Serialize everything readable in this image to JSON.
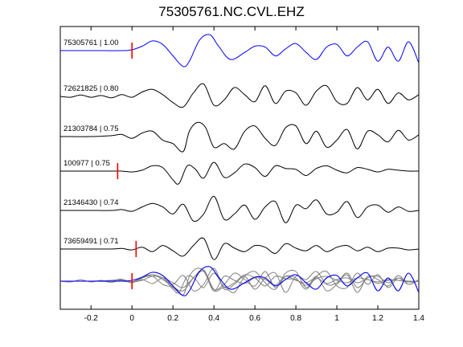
{
  "chart_data": {
    "type": "line",
    "title": "75305761.NC.CVL.EHZ",
    "xlabel": "",
    "ylabel": "",
    "xlim": [
      -0.35,
      1.4
    ],
    "xticks": [
      -0.2,
      0,
      0.2,
      0.4,
      0.6,
      0.8,
      1,
      1.2,
      1.4
    ],
    "xtick_labels": [
      "-0.2",
      "0",
      "0.2",
      "0.4",
      "0.6",
      "0.8",
      "1",
      "1.2",
      "1.4"
    ],
    "grid": false,
    "colors": {
      "primary": "#0000ff",
      "secondary": "#000000",
      "stack": "#808080",
      "pick": "#ff0000"
    },
    "traces": [
      {
        "label": "75305761 | 1.00",
        "color": "#0000ff",
        "pick": 0.0,
        "x": [
          -0.35,
          -0.2,
          -0.05,
          0,
          0.05,
          0.1,
          0.15,
          0.2,
          0.25,
          0.28,
          0.33,
          0.38,
          0.42,
          0.48,
          0.55,
          0.6,
          0.65,
          0.7,
          0.75,
          0.8,
          0.85,
          0.9,
          0.95,
          1.0,
          1.05,
          1.1,
          1.15,
          1.2,
          1.25,
          1.3,
          1.35,
          1.4
        ],
        "y": [
          0,
          0,
          0,
          0.05,
          0.25,
          0.55,
          0.35,
          -0.3,
          -0.9,
          -0.6,
          0.6,
          0.9,
          0.3,
          -0.5,
          -0.1,
          0.25,
          0.2,
          -0.3,
          0.1,
          0.4,
          -0.1,
          -0.5,
          0.2,
          0.35,
          -0.3,
          0.2,
          0.5,
          -0.6,
          0.2,
          -0.6,
          0.5,
          -0.7
        ]
      },
      {
        "label": "72621825 | 0.80",
        "color": "#000000",
        "pick": null,
        "x": [
          -0.35,
          -0.3,
          -0.25,
          -0.2,
          -0.15,
          -0.1,
          -0.05,
          0,
          0.05,
          0.1,
          0.15,
          0.2,
          0.25,
          0.3,
          0.35,
          0.4,
          0.45,
          0.5,
          0.55,
          0.6,
          0.65,
          0.7,
          0.75,
          0.8,
          0.85,
          0.9,
          0.95,
          1.0,
          1.05,
          1.1,
          1.15,
          1.2,
          1.25,
          1.3,
          1.35,
          1.4
        ],
        "y": [
          0,
          -0.05,
          0.08,
          -0.05,
          0.05,
          -0.08,
          0.1,
          -0.05,
          0.25,
          0.4,
          0.1,
          -0.35,
          -0.6,
          0.2,
          0.7,
          -0.5,
          -0.2,
          0.5,
          0.1,
          -0.3,
          0.6,
          -0.4,
          0.3,
          0.2,
          -0.5,
          0.3,
          0.6,
          -0.3,
          -0.4,
          0.5,
          -0.2,
          0.4,
          -0.4,
          0.2,
          -0.2,
          0.1
        ]
      },
      {
        "label": "21303784 | 0.75",
        "color": "#000000",
        "pick": null,
        "x": [
          -0.35,
          -0.2,
          -0.1,
          -0.05,
          0,
          0.05,
          0.1,
          0.15,
          0.2,
          0.25,
          0.28,
          0.32,
          0.36,
          0.4,
          0.45,
          0.5,
          0.55,
          0.6,
          0.65,
          0.7,
          0.75,
          0.8,
          0.85,
          0.9,
          0.95,
          1.0,
          1.05,
          1.1,
          1.15,
          1.2,
          1.25,
          1.3,
          1.35,
          1.4
        ],
        "y": [
          0,
          0,
          0.05,
          0.12,
          -0.1,
          0.2,
          0.3,
          -0.2,
          -0.4,
          -0.85,
          0.3,
          0.8,
          0.5,
          -0.6,
          -0.4,
          -0.7,
          0.3,
          0.6,
          -0.1,
          -0.5,
          0.5,
          0.6,
          -0.4,
          0.3,
          -0.6,
          -0.2,
          0.4,
          -0.7,
          0.3,
          0.1,
          -0.3,
          0.35,
          -0.2,
          0.1
        ]
      },
      {
        "label": "100977 | 0.75",
        "color": "#000000",
        "pick": -0.07,
        "x": [
          -0.35,
          -0.2,
          -0.1,
          -0.05,
          0,
          0.05,
          0.1,
          0.15,
          0.2,
          0.23,
          0.27,
          0.31,
          0.35,
          0.4,
          0.45,
          0.5,
          0.55,
          0.6,
          0.65,
          0.7,
          0.75,
          0.8,
          0.85,
          0.9,
          0.95,
          1.0,
          1.05,
          1.1,
          1.15,
          1.2,
          1.25,
          1.3,
          1.35,
          1.4
        ],
        "y": [
          0,
          0,
          0,
          0,
          -0.05,
          0.05,
          0.3,
          0.2,
          -0.5,
          -0.7,
          0.3,
          0.1,
          -0.4,
          0.5,
          -0.35,
          -0.1,
          0.4,
          0.2,
          -0.3,
          0.3,
          0.15,
          0.1,
          -0.25,
          0.15,
          0.3,
          0.05,
          -0.1,
          0.2,
          0.1,
          -0.05,
          0.1,
          0.05,
          0,
          0
        ]
      },
      {
        "label": "21346430 | 0.74",
        "color": "#000000",
        "pick": null,
        "x": [
          -0.35,
          -0.2,
          -0.1,
          -0.05,
          0,
          0.05,
          0.1,
          0.15,
          0.2,
          0.25,
          0.3,
          0.35,
          0.4,
          0.45,
          0.5,
          0.55,
          0.6,
          0.65,
          0.7,
          0.75,
          0.8,
          0.85,
          0.9,
          0.95,
          1.0,
          1.05,
          1.1,
          1.15,
          1.2,
          1.25,
          1.3,
          1.35,
          1.4
        ],
        "y": [
          0,
          0,
          0,
          0.05,
          -0.05,
          0.2,
          0.4,
          0.2,
          -0.2,
          0.35,
          -0.6,
          -0.2,
          0.8,
          -0.5,
          -0.2,
          0.3,
          -0.5,
          0.2,
          0.5,
          -0.7,
          0.3,
          0.1,
          0.6,
          -0.2,
          -0.1,
          0.5,
          -0.4,
          0.2,
          0.3,
          -0.1,
          0.2,
          -0.05,
          0
        ]
      },
      {
        "label": "73659491 | 0.71",
        "color": "#000000",
        "pick": 0.02,
        "x": [
          -0.35,
          -0.2,
          -0.1,
          -0.05,
          0,
          0.05,
          0.1,
          0.15,
          0.2,
          0.25,
          0.3,
          0.35,
          0.4,
          0.45,
          0.5,
          0.55,
          0.6,
          0.65,
          0.7,
          0.75,
          0.8,
          0.85,
          0.9,
          0.95,
          1.0,
          1.05,
          1.1,
          1.15,
          1.2,
          1.25,
          1.3,
          1.35,
          1.4
        ],
        "y": [
          0,
          0,
          0,
          0.03,
          -0.05,
          0.1,
          -0.15,
          0.2,
          -0.1,
          -0.4,
          0.2,
          0.6,
          -0.6,
          0.3,
          0.05,
          -0.15,
          0.2,
          0.1,
          -0.25,
          0.3,
          0.05,
          -0.1,
          0.2,
          -0.15,
          0.1,
          0.2,
          -0.1,
          0.1,
          -0.15,
          0.05,
          0.05,
          -0.05,
          0
        ]
      }
    ],
    "stack": {
      "description_of_overlay": "",
      "color_gray": "#808080",
      "color_primary": "#0000ff",
      "x": [
        -0.35,
        -0.2,
        -0.05,
        0,
        0.05,
        0.1,
        0.15,
        0.2,
        0.25,
        0.28,
        0.33,
        0.38,
        0.42,
        0.48,
        0.55,
        0.6,
        0.65,
        0.7,
        0.75,
        0.8,
        0.85,
        0.9,
        0.95,
        1.0,
        1.05,
        1.1,
        1.15,
        1.2,
        1.25,
        1.3,
        1.35,
        1.4
      ]
    }
  }
}
